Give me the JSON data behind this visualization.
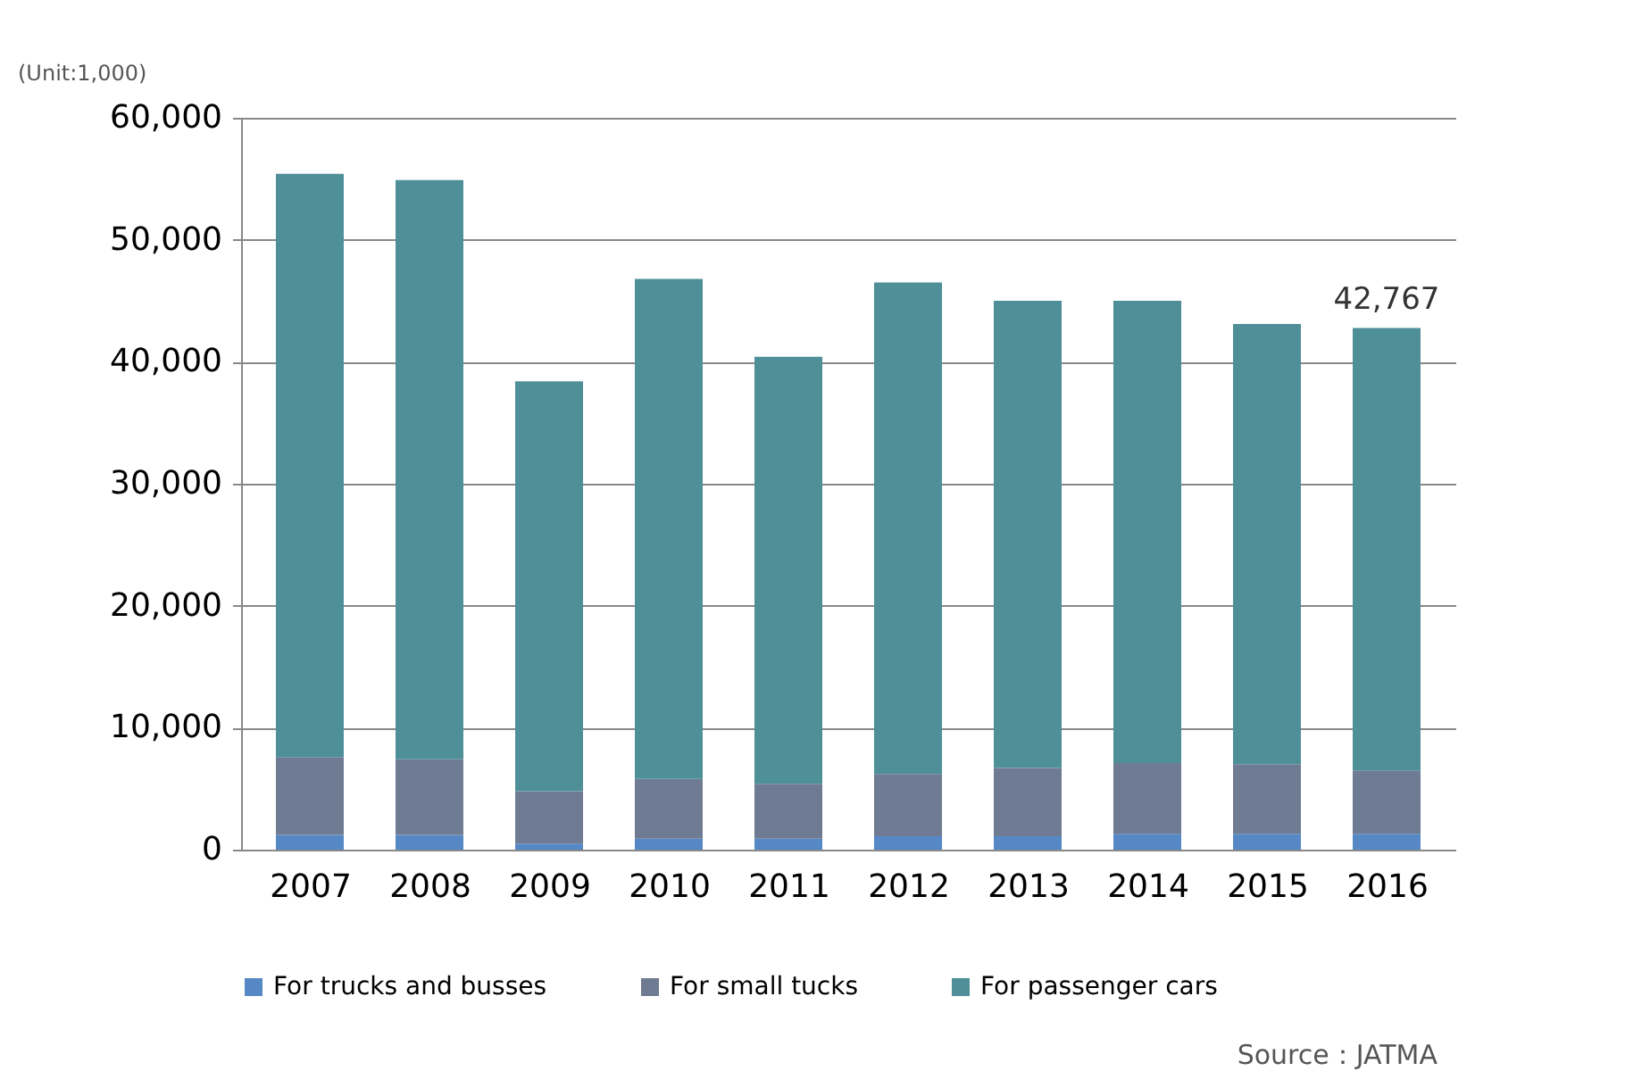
{
  "chart_data": {
    "type": "bar",
    "stacked": true,
    "categories": [
      "2007",
      "2008",
      "2009",
      "2010",
      "2011",
      "2012",
      "2013",
      "2014",
      "2015",
      "2016"
    ],
    "series": [
      {
        "name": "For trucks and busses",
        "color": "#5588c4",
        "values": [
          1200,
          1200,
          500,
          900,
          900,
          1100,
          1100,
          1300,
          1300,
          1300
        ]
      },
      {
        "name": "For small tucks",
        "color": "#6e7b93",
        "values": [
          6400,
          6200,
          4300,
          4900,
          4500,
          5100,
          5600,
          5800,
          5700,
          5200
        ]
      },
      {
        "name": "For passenger cars",
        "color": "#4e8f98",
        "values": [
          47800,
          47500,
          33600,
          41000,
          35000,
          40300,
          38300,
          37900,
          36100,
          36267
        ]
      }
    ],
    "ylim": [
      0,
      60000
    ],
    "yticks": [
      0,
      {
        "value": 10000,
        "label": "10,000"
      },
      {
        "value": 20000,
        "label": "20,000"
      },
      {
        "value": 30000,
        "label": "30,000"
      },
      {
        "value": 40000,
        "label": "40,000"
      },
      {
        "value": 50000,
        "label": "50,000"
      },
      {
        "value": 60000,
        "label": "60,000"
      }
    ],
    "grid": "y",
    "legend": "bottom",
    "annotations": [
      "(Unit:1,000)",
      {
        "text": "42,767",
        "x": "2016",
        "y": 42767
      },
      "Source：JATMA"
    ]
  }
}
